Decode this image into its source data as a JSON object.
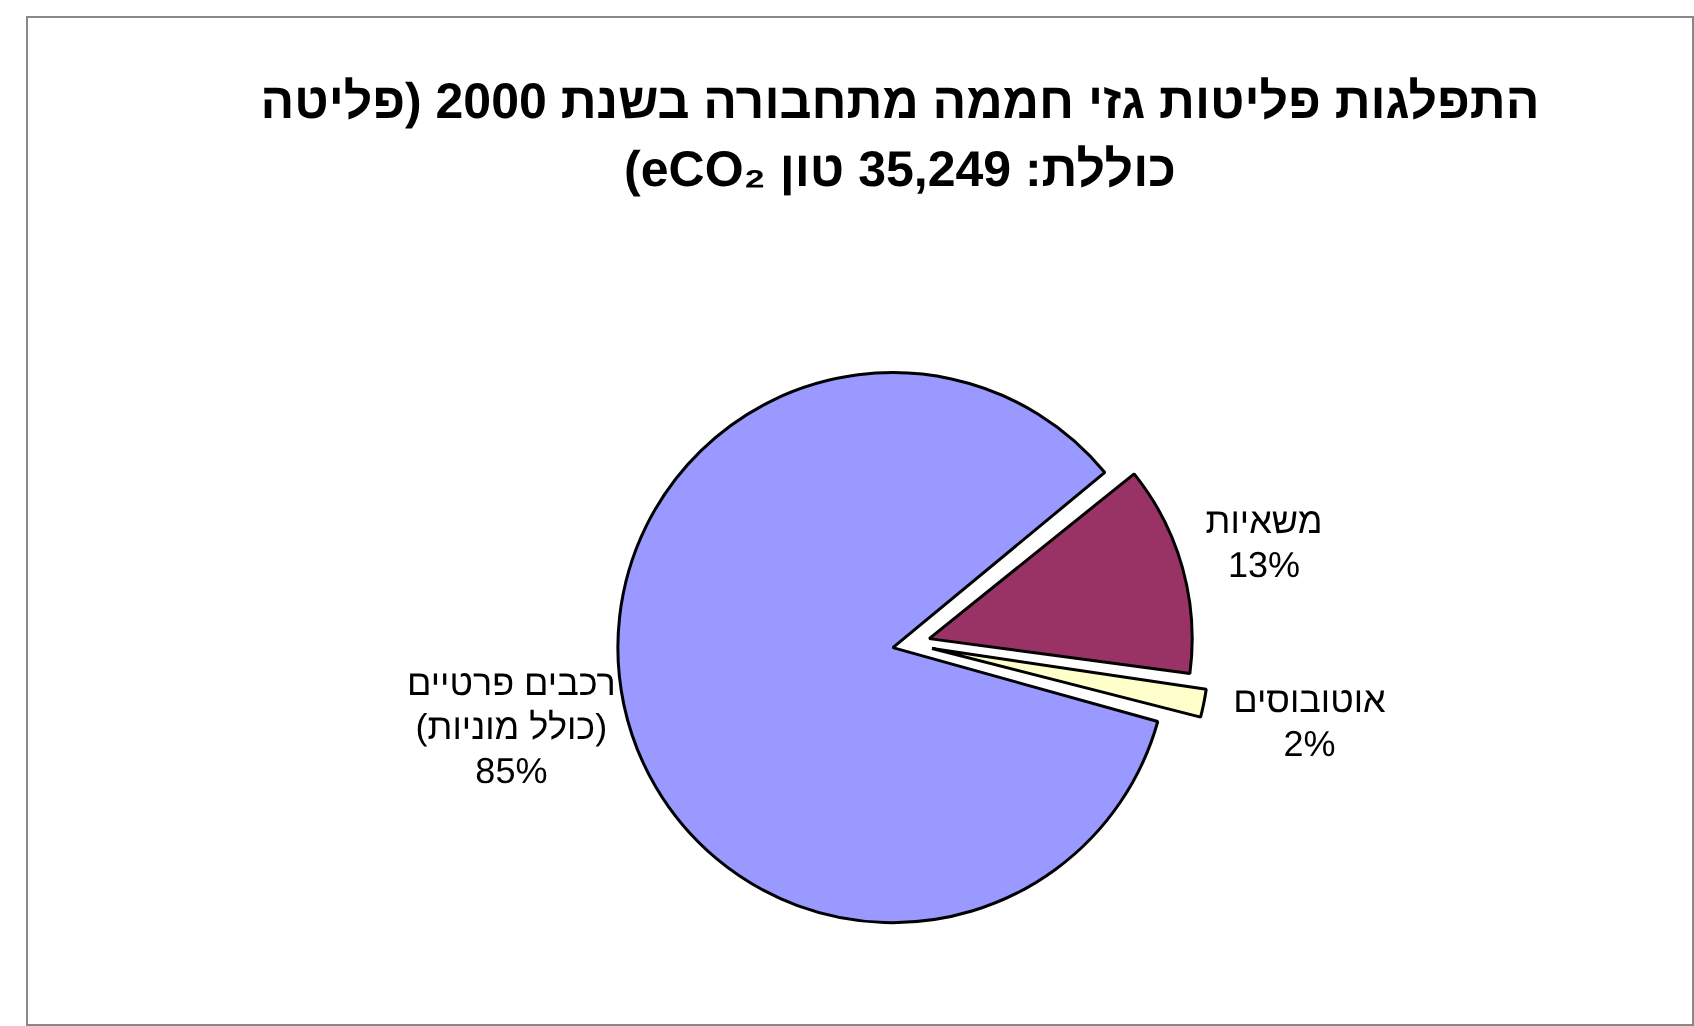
{
  "chart_data": {
    "type": "pie",
    "title": "התפלגות פליטות גזי חממה מתחבורה בשנת 2000 (פליטה כוללת: 35,249 טון eCO₂)",
    "categories": [
      "משאיות",
      "אוטובוסים",
      "רכבים פרטיים (כולל מוניות)"
    ],
    "values": [
      13,
      2,
      85
    ],
    "colors": [
      "#993366",
      "#ffffcc",
      "#9999ff"
    ],
    "value_labels": [
      "13%",
      "2%",
      "85%"
    ],
    "legend": false
  }
}
